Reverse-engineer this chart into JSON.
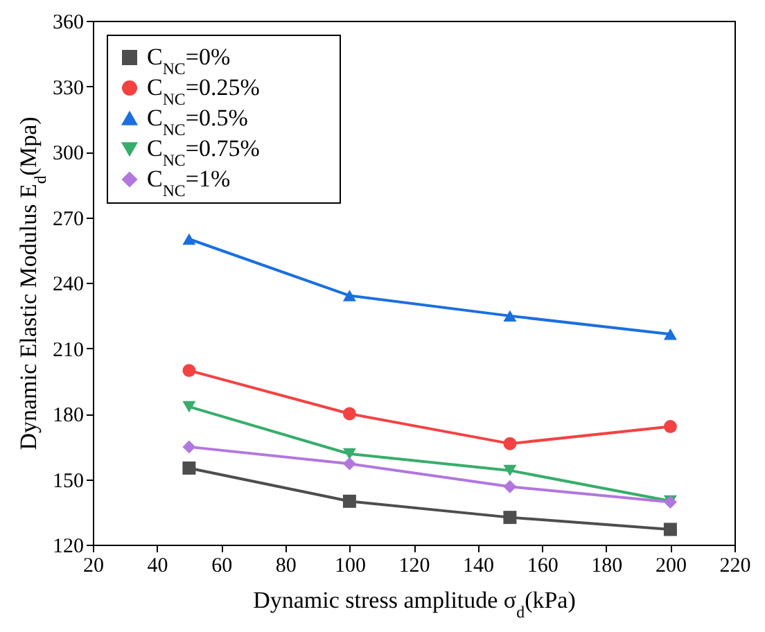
{
  "chart_data": {
    "type": "line",
    "xlabel": "Dynamic stress amplitude   σ$_{d}$(kPa)",
    "ylabel": "Dynamic Elastic Modulus E$_{d}$(Mpa)",
    "x": [
      50,
      100,
      150,
      200
    ],
    "xlim": [
      20,
      220
    ],
    "xticks": [
      20,
      40,
      60,
      80,
      100,
      120,
      140,
      160,
      180,
      200,
      220
    ],
    "ylim": [
      120,
      360
    ],
    "yticks": [
      120,
      150,
      180,
      210,
      240,
      270,
      300,
      330,
      360
    ],
    "grid": false,
    "legend": "top left",
    "line_style": "solid",
    "series": [
      {
        "name": "C$_{NC}$=0%",
        "color": "#4d4d4d",
        "marker": "square",
        "values": [
          155.1,
          139.9,
          132.5,
          127
        ]
      },
      {
        "name": "C$_{NC}$=0.25%",
        "color": "#f44242",
        "marker": "circle",
        "values": [
          199.8,
          180,
          166.3,
          174.1
        ]
      },
      {
        "name": "C$_{NC}$=0.5%",
        "color": "#1a6fdf",
        "marker": "triangle",
        "values": [
          260,
          234.1,
          224.8,
          216.4
        ]
      },
      {
        "name": "C$_{NC}$=0.75%",
        "color": "#37ad6b",
        "marker": "triangle-down",
        "values": [
          183.2,
          161.6,
          154,
          140
        ]
      },
      {
        "name": "C$_{NC}$=1%",
        "color": "#b177de",
        "marker": "diamond",
        "values": [
          164.8,
          157.1,
          146.6,
          139.5
        ]
      }
    ]
  }
}
